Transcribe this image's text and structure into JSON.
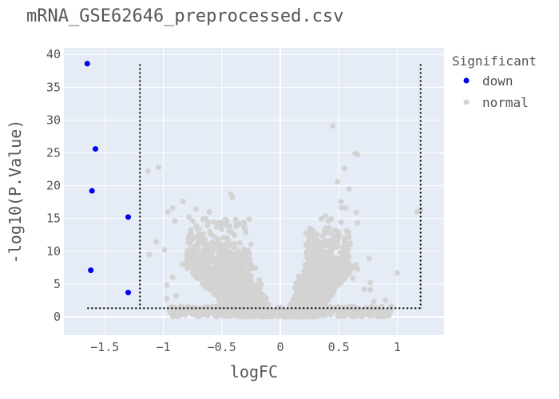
{
  "chart_data": {
    "type": "scatter",
    "title": "mRNA_GSE62646_preprocessed.csv",
    "xlabel": "logFC",
    "ylabel": "-log10(P.Value)",
    "xlim": [
      -1.85,
      1.4
    ],
    "ylim": [
      -2.8,
      41
    ],
    "x_ticks": [
      -1.5,
      -1,
      -0.5,
      0,
      0.5,
      1
    ],
    "x_tick_labels": [
      "−1.5",
      "−1",
      "−0.5",
      "0",
      "0.5",
      "1"
    ],
    "y_ticks": [
      0,
      5,
      10,
      15,
      20,
      25,
      30,
      35,
      40
    ],
    "y_tick_labels": [
      "0",
      "5",
      "10",
      "15",
      "20",
      "25",
      "30",
      "35",
      "40"
    ],
    "grid": true,
    "legend": {
      "title": "Significant",
      "placement": "right",
      "entries": [
        {
          "label": "down",
          "color": "#0000ee"
        },
        {
          "label": "normal",
          "color": "#d3d3d3"
        }
      ]
    },
    "thresholds": {
      "logfc_low": -1.2,
      "logfc_high": 1.2,
      "pvalue_line": 1.3,
      "line_x_range": [
        -1.65,
        1.2
      ],
      "line_y_range": [
        1.3,
        38.5
      ]
    },
    "series": [
      {
        "name": "down",
        "color": "#0000ee",
        "points": [
          [
            -1.65,
            38.6
          ],
          [
            -1.58,
            25.6
          ],
          [
            -1.61,
            19.2
          ],
          [
            -1.3,
            15.2
          ],
          [
            -1.62,
            7.1
          ],
          [
            -1.3,
            3.7
          ]
        ]
      },
      {
        "name": "normal",
        "color": "#d3d3d3",
        "points": [
          [
            -1.13,
            22.2
          ],
          [
            -1.04,
            22.8
          ],
          [
            -0.96,
            16.0
          ],
          [
            -0.92,
            16.6
          ],
          [
            -0.9,
            14.6
          ],
          [
            -0.83,
            17.6
          ],
          [
            -1.06,
            11.4
          ],
          [
            -1.12,
            9.5
          ],
          [
            -0.99,
            10.2
          ],
          [
            -0.97,
            4.8
          ],
          [
            -0.97,
            2.8
          ],
          [
            -0.89,
            3.2
          ],
          [
            -0.92,
            6.0
          ],
          [
            -0.78,
            15.2
          ],
          [
            -0.72,
            16.4
          ],
          [
            0.45,
            29.1
          ],
          [
            0.64,
            24.9
          ],
          [
            0.66,
            24.7
          ],
          [
            0.55,
            22.6
          ],
          [
            0.59,
            19.5
          ],
          [
            0.49,
            20.6
          ],
          [
            0.56,
            16.6
          ],
          [
            0.65,
            15.9
          ],
          [
            0.66,
            14.3
          ],
          [
            0.66,
            7.3
          ],
          [
            0.62,
            5.9
          ],
          [
            0.76,
            8.9
          ],
          [
            0.77,
            5.2
          ],
          [
            0.77,
            4.1
          ],
          [
            0.72,
            4.2
          ],
          [
            0.8,
            2.3
          ],
          [
            1.0,
            6.7
          ],
          [
            1.17,
            16.0
          ],
          [
            1.2,
            16.3
          ],
          [
            0.9,
            2.5
          ]
        ]
      }
    ]
  }
}
